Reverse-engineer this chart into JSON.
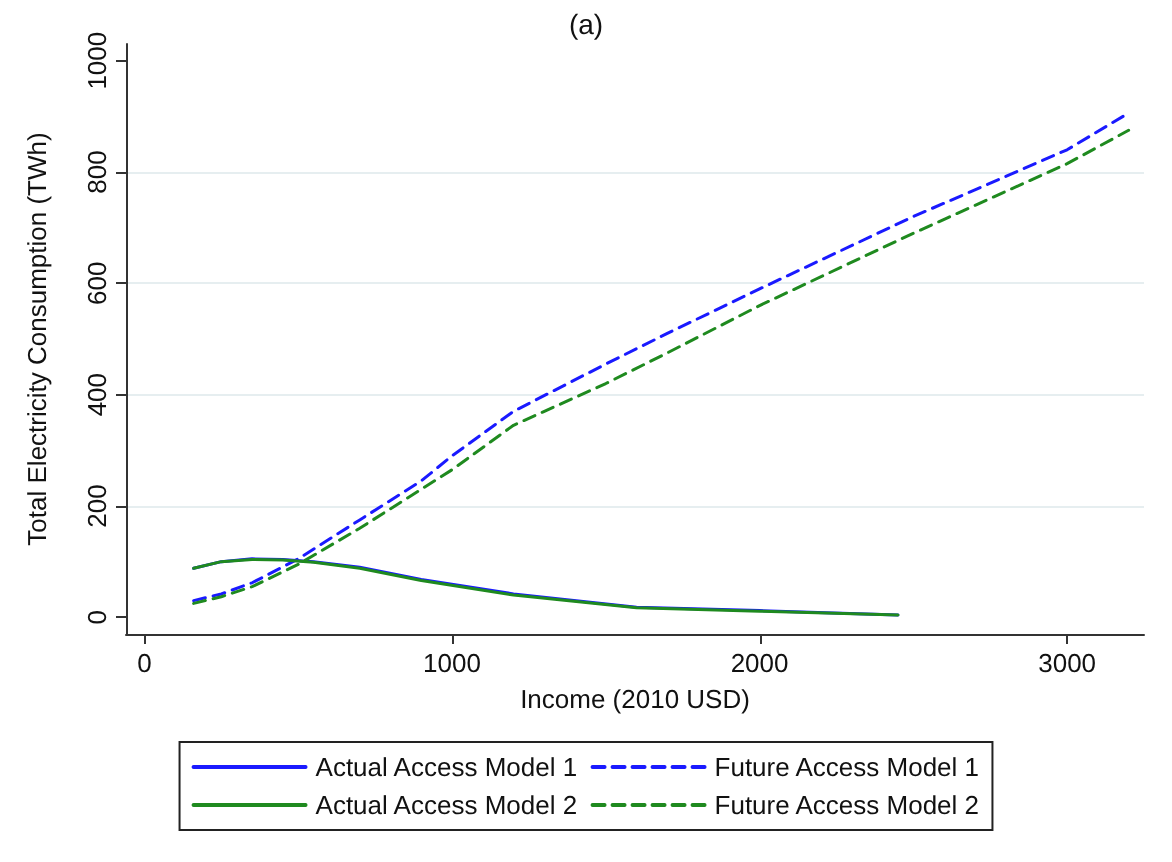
{
  "chart_data": {
    "type": "line",
    "title": "(a)",
    "xlabel": "Income (2010 USD)",
    "ylabel": "Total Electricity Consumption (TWh)",
    "xlim": [
      -60,
      3250
    ],
    "xticks": [
      0,
      1000,
      2000,
      3000
    ],
    "ylim": [
      -30,
      1030
    ],
    "yticks": [
      0,
      200,
      400,
      600,
      800,
      1000
    ],
    "grid": "y",
    "legend": "bottom",
    "marker": "none",
    "series": [
      {
        "name": "Actual Access Model 1",
        "color": "#1a1aff",
        "line_style": "solid",
        "x": [
          160,
          250,
          350,
          450,
          550,
          700,
          900,
          1200,
          1600,
          2000,
          2450
        ],
        "values": [
          88,
          100,
          105,
          104,
          100,
          90,
          68,
          42,
          18,
          12,
          4
        ]
      },
      {
        "name": "Future Access Model 1",
        "color": "#1a1aff",
        "line_style": "dashed",
        "x": [
          160,
          250,
          350,
          500,
          700,
          900,
          1000,
          1200,
          1500,
          1700,
          2000,
          2500,
          3000,
          3200
        ],
        "values": [
          30,
          42,
          62,
          105,
          175,
          245,
          290,
          370,
          455,
          510,
          590,
          720,
          840,
          906
        ]
      },
      {
        "name": "Actual Access Model 2",
        "color": "#1f8a1f",
        "line_style": "solid",
        "x": [
          160,
          250,
          350,
          450,
          550,
          700,
          900,
          1200,
          1600,
          2000,
          2450
        ],
        "values": [
          88,
          100,
          104,
          103,
          99,
          88,
          66,
          40,
          17,
          11,
          4
        ]
      },
      {
        "name": "Future Access Model 2",
        "color": "#1f8a1f",
        "line_style": "dashed",
        "x": [
          160,
          250,
          350,
          500,
          700,
          900,
          1000,
          1200,
          1500,
          1700,
          2000,
          2500,
          3000,
          3200
        ],
        "values": [
          25,
          37,
          55,
          95,
          160,
          230,
          265,
          345,
          420,
          475,
          560,
          690,
          815,
          875
        ]
      }
    ]
  }
}
